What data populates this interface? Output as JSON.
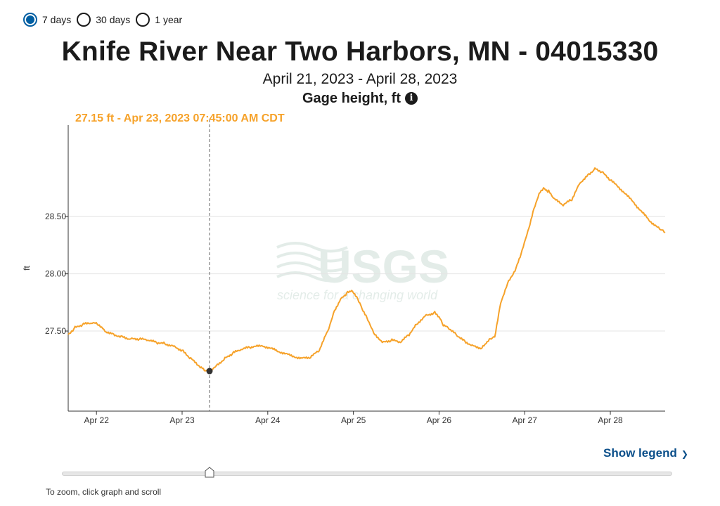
{
  "range_options": [
    {
      "label": "7 days",
      "selected": true
    },
    {
      "label": "30 days",
      "selected": false
    },
    {
      "label": "1 year",
      "selected": false
    }
  ],
  "title": "Knife River Near Two Harbors, MN - 04015330",
  "date_range": "April 21, 2023 - April 28, 2023",
  "parameter": "Gage height, ft",
  "tooltip": "27.15 ft - Apr 23, 2023 07:45:00 AM CDT",
  "watermark": {
    "logo": "USGS",
    "tagline": "science for a changing world"
  },
  "show_legend_label": "Show legend",
  "zoom_hint": "To zoom, click graph and scroll",
  "colors": {
    "series": "#f6a22a",
    "accent": "#005ea2",
    "link": "#0b4f8a"
  },
  "chart_data": {
    "type": "line",
    "ylabel": "ft",
    "ylim": [
      26.8,
      29.3
    ],
    "yticks": [
      27.5,
      28.0,
      28.5
    ],
    "ytick_labels": [
      "27.50",
      "28.00",
      "28.50"
    ],
    "xlim_days": [
      21.67,
      28.64
    ],
    "xticks": [
      22,
      23,
      24,
      25,
      26,
      27,
      28
    ],
    "xtick_labels": [
      "Apr 22",
      "Apr 23",
      "Apr 24",
      "Apr 25",
      "Apr 26",
      "Apr 27",
      "Apr 28"
    ],
    "grid": true,
    "cursor": {
      "x": 23.32,
      "y": 27.15
    },
    "series": [
      {
        "x": [
          21.67,
          21.75,
          21.85,
          21.95,
          22.02,
          22.1,
          22.2,
          22.3,
          22.4,
          22.5,
          22.6,
          22.7,
          22.8,
          22.9,
          23.0,
          23.1,
          23.2,
          23.26,
          23.32,
          23.4,
          23.5,
          23.6,
          23.7,
          23.8,
          23.95,
          24.1,
          24.25,
          24.4,
          24.5,
          24.6,
          24.7,
          24.78,
          24.85,
          24.92,
          24.98,
          25.05,
          25.1,
          25.17,
          25.25,
          25.35,
          25.45,
          25.55,
          25.65,
          25.75,
          25.85,
          25.95,
          26.0,
          26.05,
          26.12,
          26.2,
          26.3,
          26.4,
          26.5,
          26.55,
          26.6,
          26.65,
          26.72,
          26.8,
          26.9,
          26.97,
          27.05,
          27.12,
          27.18,
          27.22,
          27.28,
          27.35,
          27.45,
          27.55,
          27.65,
          27.75,
          27.82,
          27.9,
          28.0,
          28.15,
          28.3,
          28.45,
          28.55,
          28.6,
          28.64
        ],
        "y": [
          27.47,
          27.53,
          27.56,
          27.57,
          27.56,
          27.5,
          27.47,
          27.45,
          27.43,
          27.43,
          27.42,
          27.4,
          27.39,
          27.37,
          27.33,
          27.26,
          27.19,
          27.16,
          27.15,
          27.2,
          27.26,
          27.31,
          27.34,
          27.36,
          27.37,
          27.33,
          27.29,
          27.26,
          27.27,
          27.33,
          27.5,
          27.68,
          27.78,
          27.83,
          27.85,
          27.78,
          27.7,
          27.6,
          27.47,
          27.4,
          27.42,
          27.4,
          27.47,
          27.57,
          27.64,
          27.66,
          27.62,
          27.55,
          27.52,
          27.47,
          27.41,
          27.37,
          27.35,
          27.39,
          27.43,
          27.45,
          27.75,
          27.92,
          28.05,
          28.2,
          28.4,
          28.6,
          28.72,
          28.75,
          28.72,
          28.65,
          28.6,
          28.65,
          28.8,
          28.87,
          28.92,
          28.89,
          28.82,
          28.72,
          28.6,
          28.47,
          28.41,
          28.38,
          28.36
        ]
      }
    ]
  }
}
